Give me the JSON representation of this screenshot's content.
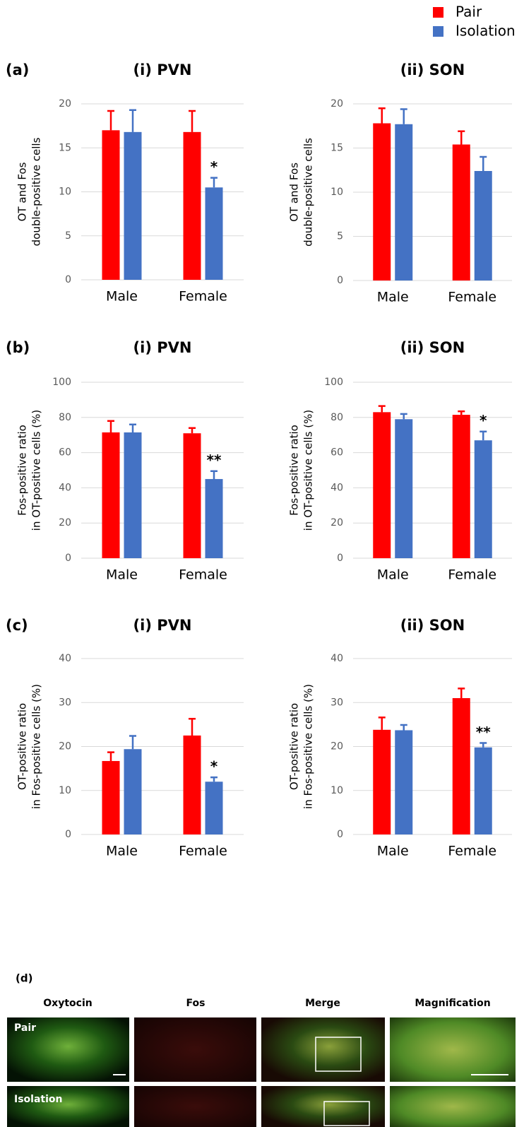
{
  "panel_labels": [
    "(a)",
    "(b)",
    "(c)",
    "(d)"
  ],
  "chart_data": [
    {
      "type": "bar",
      "title": "(i) PVN",
      "ylabel": [
        "OT and Fos",
        "double-positive cells"
      ],
      "categories": [
        "Male",
        "Female"
      ],
      "series": [
        {
          "name": "Pair",
          "color": "#ff0000",
          "values": [
            17.0,
            16.8
          ],
          "errors": [
            2.2,
            2.4
          ],
          "annotations": [
            null,
            null
          ]
        },
        {
          "name": "Isolation",
          "color": "#4472c4",
          "values": [
            16.8,
            10.5
          ],
          "errors": [
            2.5,
            1.1
          ],
          "annotations": [
            null,
            "*"
          ]
        }
      ],
      "ylim": [
        0,
        20
      ],
      "yticks": [
        0,
        5,
        10,
        15,
        20
      ],
      "grid": true
    },
    {
      "type": "bar",
      "title": "(ii) SON",
      "ylabel": [
        "OT and Fos",
        "double-positive cells"
      ],
      "categories": [
        "Male",
        "Female"
      ],
      "series": [
        {
          "name": "Pair",
          "color": "#ff0000",
          "values": [
            17.8,
            15.4
          ],
          "errors": [
            1.7,
            1.5
          ],
          "annotations": [
            null,
            null
          ]
        },
        {
          "name": "Isolation",
          "color": "#4472c4",
          "values": [
            17.7,
            12.4
          ],
          "errors": [
            1.7,
            1.6
          ],
          "annotations": [
            null,
            null
          ]
        }
      ],
      "ylim": [
        0,
        20
      ],
      "yticks": [
        0,
        5,
        10,
        15,
        20
      ],
      "grid": true
    },
    {
      "type": "bar",
      "title": "(i) PVN",
      "ylabel": [
        "Fos-positive ratio",
        "in OT-positive cells (%)"
      ],
      "categories": [
        "Male",
        "Female"
      ],
      "series": [
        {
          "name": "Pair",
          "color": "#ff0000",
          "values": [
            71.5,
            71
          ],
          "errors": [
            6.5,
            3
          ],
          "annotations": [
            null,
            null
          ]
        },
        {
          "name": "Isolation",
          "color": "#4472c4",
          "values": [
            71.5,
            45
          ],
          "errors": [
            4.5,
            4.5
          ],
          "annotations": [
            null,
            "**"
          ]
        }
      ],
      "ylim": [
        0,
        100
      ],
      "yticks": [
        0,
        20,
        40,
        60,
        80,
        100
      ],
      "grid": true
    },
    {
      "type": "bar",
      "title": "(ii) SON",
      "ylabel": [
        "Fos-positive ratio",
        "in OT-positive cells (%)"
      ],
      "categories": [
        "Male",
        "Female"
      ],
      "series": [
        {
          "name": "Pair",
          "color": "#ff0000",
          "values": [
            83,
            81.5
          ],
          "errors": [
            3.5,
            2
          ],
          "annotations": [
            null,
            null
          ]
        },
        {
          "name": "Isolation",
          "color": "#4472c4",
          "values": [
            79,
            67
          ],
          "errors": [
            3,
            5
          ],
          "annotations": [
            null,
            "*"
          ]
        }
      ],
      "ylim": [
        0,
        100
      ],
      "yticks": [
        0,
        20,
        40,
        60,
        80,
        100
      ],
      "grid": true
    },
    {
      "type": "bar",
      "title": "(i) PVN",
      "ylabel": [
        "OT-positive ratio",
        "in Fos-positive cells (%)"
      ],
      "categories": [
        "Male",
        "Female"
      ],
      "series": [
        {
          "name": "Pair",
          "color": "#ff0000",
          "values": [
            16.7,
            22.5
          ],
          "errors": [
            2,
            3.8
          ],
          "annotations": [
            null,
            null
          ]
        },
        {
          "name": "Isolation",
          "color": "#4472c4",
          "values": [
            19.4,
            12
          ],
          "errors": [
            3,
            1
          ],
          "annotations": [
            null,
            "*"
          ]
        }
      ],
      "ylim": [
        0,
        40
      ],
      "yticks": [
        0,
        10,
        20,
        30,
        40
      ],
      "grid": true
    },
    {
      "type": "bar",
      "title": "(ii) SON",
      "ylabel": [
        "OT-positive ratio",
        "in Fos-positive cells (%)"
      ],
      "categories": [
        "Male",
        "Female"
      ],
      "series": [
        {
          "name": "Pair",
          "color": "#ff0000",
          "values": [
            23.8,
            31
          ],
          "errors": [
            2.8,
            2.2
          ],
          "annotations": [
            null,
            null
          ]
        },
        {
          "name": "Isolation",
          "color": "#4472c4",
          "values": [
            23.7,
            19.8
          ],
          "errors": [
            1.2,
            1
          ],
          "annotations": [
            null,
            "**"
          ]
        }
      ],
      "ylim": [
        0,
        40
      ],
      "yticks": [
        0,
        10,
        20,
        30,
        40
      ],
      "grid": true
    }
  ],
  "micrographs": {
    "columns": [
      "Oxytocin",
      "Fos",
      "Merge",
      "Magnification"
    ],
    "rows": [
      "Pair",
      "Isolation"
    ]
  }
}
